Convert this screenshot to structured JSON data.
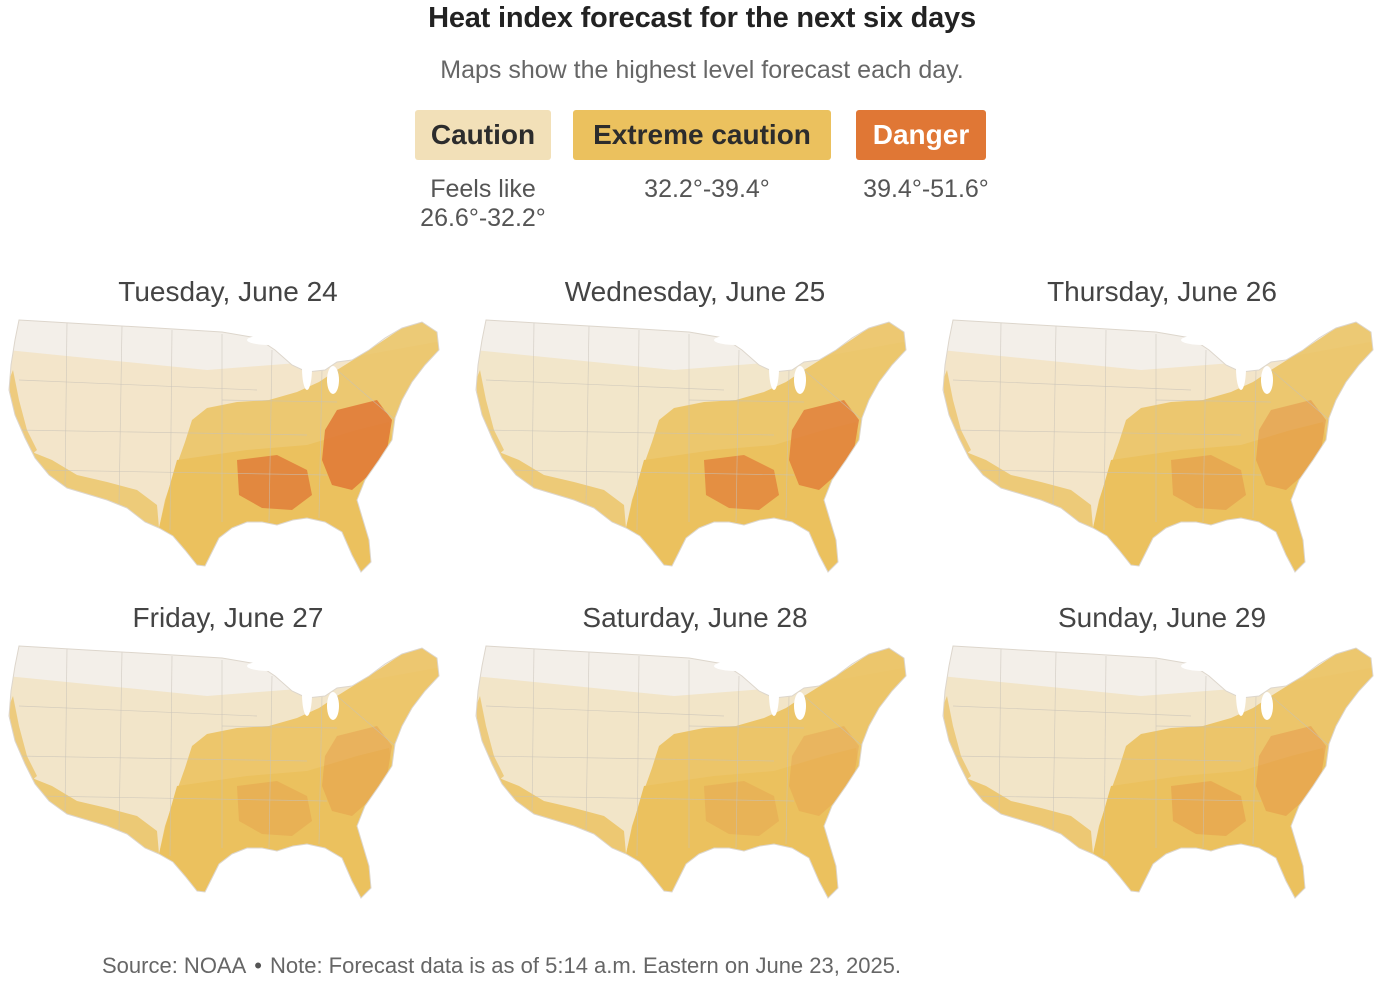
{
  "title": "Heat index forecast for the next six days",
  "subtitle": "Maps show the highest level forecast each day.",
  "colors": {
    "base": "#f3efe9",
    "caution": "#f2e0b8",
    "extreme": "#ebc15e",
    "danger": "#e07735",
    "border": "#c8c2b8"
  },
  "legend": [
    {
      "label": "Caution",
      "range_line1": "Feels like",
      "range_line2": "26.6°-32.2°"
    },
    {
      "label": "Extreme caution",
      "range_line1": "32.2°-39.4°",
      "range_line2": ""
    },
    {
      "label": "Danger",
      "range_line1": "39.4°-51.6°",
      "range_line2": ""
    }
  ],
  "maps": [
    {
      "date": "Tuesday, June 24",
      "extreme": 0.62,
      "danger": 0.85
    },
    {
      "date": "Wednesday, June 25",
      "extreme": 0.68,
      "danger": 0.75
    },
    {
      "date": "Thursday, June 26",
      "extreme": 0.65,
      "danger": 0.35
    },
    {
      "date": "Friday, June 27",
      "extreme": 0.72,
      "danger": 0.25
    },
    {
      "date": "Saturday, June 28",
      "extreme": 0.78,
      "danger": 0.2
    },
    {
      "date": "Sunday, June 29",
      "extreme": 0.75,
      "danger": 0.3
    }
  ],
  "footer": {
    "source": "Source: NOAA",
    "separator": "•",
    "note": "Note: Forecast data is as of 5:14 a.m. Eastern on June 23, 2025."
  }
}
